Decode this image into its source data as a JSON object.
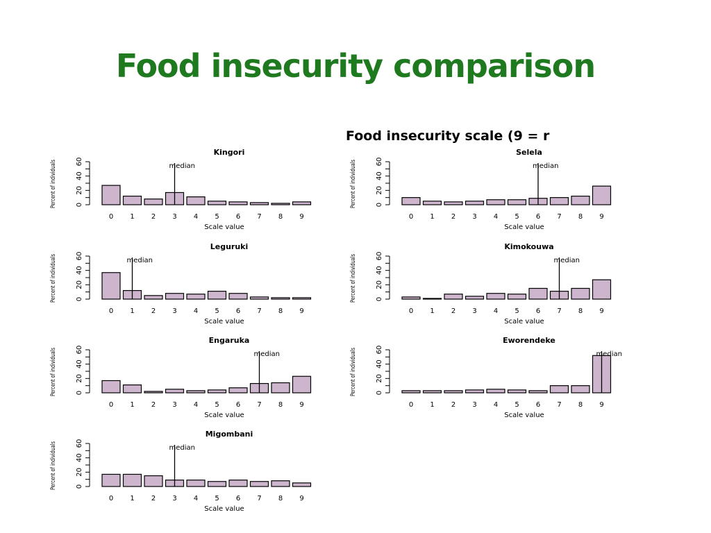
{
  "slide": {
    "title": "Food insecurity comparison",
    "title_color": "#1f7a1f"
  },
  "figure_title": "Food insecurity scale (9 = r",
  "median_label": "median",
  "bar_color": "#cdb5cd",
  "chart_data": [
    {
      "type": "bar",
      "title": "Kingori",
      "xlabel": "Scale value",
      "ylabel": "Percent of individuals",
      "categories": [
        "0",
        "1",
        "2",
        "3",
        "4",
        "5",
        "6",
        "7",
        "8",
        "9"
      ],
      "values": [
        27,
        12,
        8,
        17,
        11,
        5,
        4,
        3,
        2,
        4
      ],
      "median": 3,
      "ylim": [
        0,
        60
      ],
      "yticks": [
        0,
        20,
        40,
        60
      ]
    },
    {
      "type": "bar",
      "title": "Selela",
      "xlabel": "Scale value",
      "ylabel": "Percent of individuals",
      "categories": [
        "0",
        "1",
        "2",
        "3",
        "4",
        "5",
        "6",
        "7",
        "8",
        "9"
      ],
      "values": [
        10,
        5,
        4,
        5,
        7,
        7,
        9,
        10,
        12,
        26
      ],
      "median": 6,
      "ylim": [
        0,
        60
      ],
      "yticks": [
        0,
        20,
        40,
        60
      ]
    },
    {
      "type": "bar",
      "title": "Leguruki",
      "xlabel": "Scale value",
      "ylabel": "Percent of individuals",
      "categories": [
        "0",
        "1",
        "2",
        "3",
        "4",
        "5",
        "6",
        "7",
        "8",
        "9"
      ],
      "values": [
        37,
        12,
        5,
        8,
        7,
        11,
        8,
        3,
        2,
        2
      ],
      "median": 1,
      "ylim": [
        0,
        60
      ],
      "yticks": [
        0,
        20,
        40,
        60
      ]
    },
    {
      "type": "bar",
      "title": "Kimokouwa",
      "xlabel": "Scale value",
      "ylabel": "Percent of individuals",
      "categories": [
        "0",
        "1",
        "2",
        "3",
        "4",
        "5",
        "6",
        "7",
        "8",
        "9"
      ],
      "values": [
        3,
        1,
        7,
        4,
        8,
        7,
        15,
        11,
        15,
        27
      ],
      "median": 7,
      "ylim": [
        0,
        60
      ],
      "yticks": [
        0,
        20,
        40,
        60
      ]
    },
    {
      "type": "bar",
      "title": "Engaruka",
      "xlabel": "Scale value",
      "ylabel": "Percent of individuals",
      "categories": [
        "0",
        "1",
        "2",
        "3",
        "4",
        "5",
        "6",
        "7",
        "8",
        "9"
      ],
      "values": [
        17,
        11,
        2,
        5,
        3,
        4,
        7,
        13,
        14,
        23
      ],
      "median": 7,
      "ylim": [
        0,
        60
      ],
      "yticks": [
        0,
        20,
        40,
        60
      ]
    },
    {
      "type": "bar",
      "title": "Eworendeke",
      "xlabel": "Scale value",
      "ylabel": "Percent of individuals",
      "categories": [
        "0",
        "1",
        "2",
        "3",
        "4",
        "5",
        "6",
        "7",
        "8",
        "9"
      ],
      "values": [
        3,
        3,
        3,
        4,
        5,
        4,
        3,
        10,
        10,
        52
      ],
      "median": 9,
      "ylim": [
        0,
        60
      ],
      "yticks": [
        0,
        20,
        40,
        60
      ]
    },
    {
      "type": "bar",
      "title": "Migombani",
      "xlabel": "Scale value",
      "ylabel": "Percent of individuals",
      "categories": [
        "0",
        "1",
        "2",
        "3",
        "4",
        "5",
        "6",
        "7",
        "8",
        "9"
      ],
      "values": [
        17,
        17,
        15,
        9,
        9,
        7,
        9,
        7,
        8,
        5
      ],
      "median": 3,
      "ylim": [
        0,
        60
      ],
      "yticks": [
        0,
        20,
        40,
        60
      ]
    }
  ]
}
